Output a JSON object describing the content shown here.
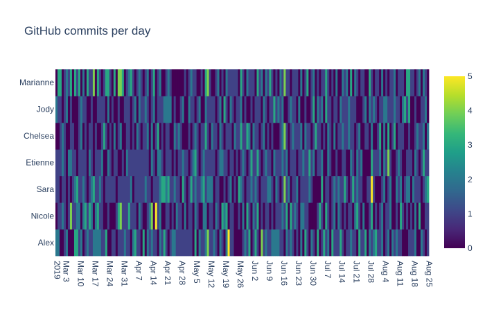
{
  "chart_data": {
    "type": "heatmap",
    "title": "GitHub commits per day",
    "xlabel": "",
    "ylabel": "",
    "start_date": "2019-03-01",
    "num_days": 180,
    "y_categories": [
      "Alex",
      "Nicole",
      "Sara",
      "Etienne",
      "Chelsea",
      "Jody",
      "Marianne"
    ],
    "x_tick_labels": [
      "Mar 3\n2019",
      "Mar 10",
      "Mar 17",
      "Mar 24",
      "Mar 31",
      "Apr 7",
      "Apr 14",
      "Apr 21",
      "Apr 28",
      "May 5",
      "May 12",
      "May 19",
      "May 26",
      "Jun 2",
      "Jun 9",
      "Jun 16",
      "Jun 23",
      "Jun 30",
      "Jul 7",
      "Jul 14",
      "Jul 21",
      "Jul 28",
      "Aug 4",
      "Aug 11",
      "Aug 18",
      "Aug 25"
    ],
    "x_tick_day_index": [
      2,
      9,
      16,
      23,
      30,
      37,
      44,
      51,
      58,
      65,
      72,
      79,
      86,
      93,
      100,
      107,
      114,
      121,
      128,
      135,
      142,
      149,
      156,
      163,
      170,
      177
    ],
    "colorscale": "Viridis",
    "zmin": 0,
    "zmax": 5,
    "colorbar_ticks": [
      0,
      1,
      2,
      3,
      4,
      5
    ],
    "z": {
      "Alex": [
        2,
        2,
        0,
        0,
        1,
        2,
        0,
        0,
        0,
        3,
        3,
        1,
        2,
        0,
        1,
        2,
        1,
        1,
        2,
        2,
        2,
        2,
        1,
        1,
        3,
        0,
        0,
        1,
        1,
        0,
        1,
        1,
        1,
        2,
        1,
        1,
        0,
        2,
        3,
        1,
        1,
        0,
        3,
        0,
        2,
        1,
        2,
        1,
        1,
        0,
        2,
        1,
        3,
        1,
        0,
        1,
        2,
        2,
        1,
        1,
        1,
        1,
        1,
        1,
        1,
        1,
        0,
        3,
        0,
        2,
        1,
        1,
        2,
        4,
        1,
        1,
        2,
        1,
        0,
        2,
        1,
        0,
        2,
        5,
        1,
        1,
        0,
        0,
        0,
        0,
        1,
        2,
        1,
        3,
        0,
        1,
        3,
        1,
        0,
        4,
        1,
        2,
        1,
        1,
        2,
        2,
        2,
        2,
        1,
        1,
        0,
        2,
        1,
        2,
        1,
        0,
        1,
        0,
        2,
        0,
        3,
        1,
        0,
        2,
        1,
        0,
        3,
        0,
        1,
        3,
        1,
        2,
        0,
        3,
        1,
        1,
        1,
        3,
        1,
        0,
        1,
        1,
        2,
        1,
        1,
        0,
        3,
        1,
        1,
        3,
        0,
        2,
        1,
        2,
        3,
        1,
        1,
        2,
        0,
        1,
        2,
        0,
        2,
        1,
        2,
        1,
        1,
        0,
        0,
        0,
        1,
        1,
        1,
        2,
        0,
        0,
        2,
        1,
        0,
        1
      ],
      "Nicole": [
        0,
        1,
        1,
        2,
        1,
        0,
        1,
        4,
        1,
        1,
        2,
        2,
        0,
        2,
        3,
        1,
        3,
        2,
        0,
        2,
        3,
        1,
        1,
        0,
        0,
        1,
        0,
        0,
        0,
        1,
        3,
        4,
        1,
        1,
        1,
        3,
        1,
        1,
        1,
        0,
        2,
        1,
        0,
        0,
        1,
        2,
        4,
        0,
        5,
        1,
        2,
        0,
        0,
        1,
        1,
        0,
        1,
        0,
        2,
        1,
        1,
        0,
        2,
        0,
        1,
        1,
        0,
        2,
        1,
        0,
        0,
        2,
        2,
        0,
        1,
        1,
        0,
        2,
        1,
        0,
        3,
        2,
        3,
        0,
        1,
        1,
        0,
        0,
        1,
        0,
        2,
        0,
        3,
        1,
        0,
        2,
        1,
        3,
        0,
        1,
        0,
        1,
        1,
        0,
        1,
        0,
        1,
        1,
        1,
        2,
        1,
        3,
        0,
        3,
        1,
        2,
        1,
        0,
        2,
        2,
        1,
        1,
        0,
        0,
        0,
        0,
        1,
        3,
        1,
        0,
        3,
        1,
        0,
        1,
        2,
        0,
        2,
        1,
        0,
        1,
        0,
        1,
        1,
        0,
        2,
        3,
        1,
        0,
        2,
        0,
        0,
        1,
        3,
        0,
        1,
        0,
        1,
        2,
        0,
        1,
        1,
        2,
        0,
        0,
        1,
        0,
        3,
        1,
        0,
        1,
        0,
        1,
        0,
        2,
        0,
        3,
        0,
        0,
        1,
        1
      ],
      "Sara": [
        1,
        1,
        0,
        1,
        1,
        0,
        1,
        0,
        1,
        2,
        3,
        1,
        1,
        2,
        1,
        0,
        1,
        2,
        3,
        1,
        1,
        2,
        1,
        0,
        1,
        1,
        1,
        1,
        1,
        0,
        1,
        1,
        1,
        1,
        1,
        1,
        2,
        0,
        1,
        1,
        1,
        1,
        1,
        2,
        1,
        1,
        0,
        1,
        1,
        1,
        2,
        3,
        3,
        2,
        3,
        1,
        1,
        2,
        1,
        1,
        0,
        3,
        1,
        0,
        1,
        3,
        1,
        2,
        1,
        1,
        2,
        3,
        1,
        2,
        2,
        2,
        0,
        1,
        1,
        0,
        0,
        1,
        0,
        1,
        2,
        0,
        1,
        0,
        3,
        2,
        1,
        0,
        1,
        1,
        2,
        1,
        2,
        1,
        0,
        1,
        1,
        1,
        2,
        2,
        1,
        0,
        2,
        1,
        0,
        1,
        4,
        1,
        2,
        0,
        1,
        1,
        2,
        0,
        1,
        1,
        1,
        1,
        2,
        1,
        0,
        0,
        0,
        0,
        3,
        0,
        1,
        1,
        0,
        1,
        2,
        1,
        2,
        1,
        1,
        3,
        1,
        0,
        1,
        3,
        1,
        2,
        1,
        1,
        0,
        0,
        1,
        1,
        5,
        1,
        0,
        0,
        0,
        1,
        2,
        0,
        1,
        2,
        0,
        0,
        2,
        1,
        2,
        0,
        1,
        2,
        2,
        0,
        2,
        1,
        1,
        1,
        0,
        1,
        2,
        3
      ],
      "Etienne": [
        1,
        1,
        1,
        2,
        1,
        0,
        2,
        2,
        1,
        1,
        0,
        1,
        1,
        1,
        1,
        0,
        2,
        1,
        0,
        1,
        1,
        1,
        2,
        0,
        0,
        2,
        1,
        0,
        1,
        1,
        0,
        0,
        1,
        0,
        2,
        1,
        1,
        1,
        1,
        1,
        1,
        1,
        1,
        1,
        1,
        0,
        2,
        1,
        0,
        2,
        2,
        1,
        0,
        1,
        1,
        1,
        0,
        1,
        0,
        1,
        1,
        2,
        1,
        1,
        0,
        1,
        2,
        3,
        1,
        0,
        1,
        2,
        1,
        1,
        1,
        1,
        1,
        0,
        1,
        2,
        2,
        1,
        1,
        0,
        1,
        1,
        0,
        1,
        0,
        1,
        2,
        1,
        0,
        1,
        3,
        1,
        1,
        3,
        1,
        0,
        1,
        2,
        1,
        1,
        0,
        2,
        1,
        1,
        1,
        2,
        1,
        2,
        0,
        1,
        1,
        1,
        0,
        1,
        1,
        2,
        1,
        1,
        3,
        1,
        2,
        0,
        1,
        1,
        2,
        0,
        0,
        2,
        1,
        0,
        0,
        1,
        0,
        0,
        1,
        1,
        0,
        0,
        2,
        1,
        0,
        2,
        1,
        2,
        0,
        0,
        0,
        0,
        3,
        1,
        1,
        1,
        2,
        0,
        2,
        1,
        4,
        1,
        0,
        0,
        1,
        2,
        1,
        0,
        0,
        1,
        1,
        1,
        0,
        2,
        1,
        0,
        1,
        3,
        1,
        1
      ],
      "Chelsea": [
        0,
        0,
        1,
        2,
        1,
        0,
        0,
        1,
        1,
        0,
        0,
        1,
        2,
        0,
        1,
        0,
        1,
        1,
        0,
        1,
        0,
        0,
        1,
        3,
        1,
        0,
        1,
        0,
        2,
        0,
        1,
        2,
        0,
        0,
        1,
        1,
        0,
        1,
        0,
        2,
        1,
        0,
        1,
        1,
        2,
        0,
        2,
        0,
        1,
        3,
        0,
        1,
        0,
        1,
        1,
        0,
        0,
        2,
        1,
        2,
        1,
        0,
        0,
        0,
        1,
        0,
        1,
        2,
        1,
        0,
        1,
        1,
        3,
        1,
        0,
        2,
        1,
        1,
        0,
        2,
        1,
        0,
        1,
        1,
        1,
        0,
        2,
        1,
        1,
        3,
        1,
        1,
        3,
        2,
        0,
        2,
        1,
        1,
        0,
        1,
        2,
        0,
        1,
        0,
        1,
        0,
        0,
        0,
        1,
        2,
        4,
        1,
        0,
        1,
        2,
        1,
        1,
        1,
        2,
        0,
        2,
        1,
        1,
        0,
        1,
        3,
        1,
        1,
        0,
        1,
        0,
        2,
        1,
        0,
        2,
        0,
        1,
        1,
        2,
        1,
        1,
        2,
        1,
        1,
        0,
        1,
        2,
        0,
        0,
        1,
        1,
        0,
        2,
        0,
        0,
        1,
        3,
        0,
        2,
        0,
        3,
        0,
        1,
        3,
        0,
        1,
        1,
        1,
        0,
        0,
        1,
        0,
        0,
        1,
        2,
        1,
        1,
        2,
        0,
        2
      ],
      "Jody": [
        2,
        1,
        1,
        0,
        1,
        2,
        0,
        1,
        0,
        0,
        0,
        1,
        2,
        1,
        1,
        0,
        0,
        1,
        0,
        0,
        1,
        1,
        1,
        1,
        0,
        2,
        0,
        1,
        0,
        0,
        1,
        0,
        0,
        1,
        1,
        1,
        0,
        1,
        2,
        0,
        2,
        1,
        1,
        2,
        1,
        0,
        1,
        2,
        0,
        1,
        1,
        1,
        2,
        2,
        2,
        2,
        0,
        1,
        0,
        0,
        1,
        2,
        0,
        0,
        2,
        1,
        1,
        0,
        1,
        2,
        0,
        0,
        2,
        1,
        1,
        1,
        1,
        0,
        1,
        2,
        0,
        3,
        1,
        0,
        2,
        1,
        0,
        1,
        1,
        2,
        0,
        1,
        0,
        0,
        1,
        0,
        1,
        1,
        1,
        0,
        2,
        1,
        0,
        1,
        1,
        3,
        1,
        2,
        1,
        2,
        0,
        0,
        1,
        2,
        1,
        1,
        0,
        2,
        0,
        0,
        1,
        0,
        0,
        1,
        3,
        0,
        2,
        1,
        2,
        0,
        3,
        1,
        1,
        0,
        1,
        1,
        0,
        2,
        1,
        1,
        1,
        2,
        1,
        1,
        1,
        0,
        0,
        0,
        1,
        2,
        0,
        2,
        1,
        2,
        1,
        0,
        1,
        1,
        2,
        2,
        1,
        1,
        1,
        2,
        1,
        1,
        0,
        2,
        3,
        1,
        3,
        0,
        0,
        1,
        0,
        0,
        1,
        1,
        2,
        0
      ],
      "Marianne": [
        0,
        3,
        3,
        0,
        1,
        2,
        1,
        3,
        0,
        3,
        1,
        3,
        0,
        2,
        0,
        3,
        1,
        1,
        4,
        0,
        3,
        1,
        0,
        1,
        3,
        3,
        1,
        0,
        3,
        0,
        4,
        4,
        3,
        0,
        1,
        2,
        3,
        1,
        0,
        1,
        2,
        1,
        0,
        1,
        2,
        0,
        1,
        3,
        0,
        1,
        2,
        0,
        0,
        1,
        2,
        1,
        0,
        0,
        0,
        0,
        0,
        0,
        1,
        0,
        1,
        2,
        1,
        1,
        0,
        0,
        1,
        0,
        3,
        4,
        1,
        0,
        0,
        1,
        2,
        0,
        1,
        0,
        2,
        1,
        1,
        1,
        1,
        1,
        0,
        3,
        1,
        0,
        2,
        1,
        1,
        1,
        0,
        3,
        1,
        2,
        0,
        2,
        1,
        3,
        1,
        0,
        1,
        0,
        2,
        1,
        4,
        1,
        1,
        0,
        1,
        1,
        1,
        0,
        2,
        0,
        1,
        3,
        0,
        1,
        2,
        0,
        1,
        0,
        1,
        1,
        3,
        1,
        0,
        1,
        0,
        2,
        0,
        0,
        2,
        1,
        2,
        0,
        3,
        0,
        2,
        1,
        0,
        1,
        1,
        0,
        0,
        3,
        1,
        0,
        1,
        1,
        0,
        2,
        0,
        1,
        0,
        1,
        1,
        2,
        0,
        1,
        1,
        1,
        0,
        3,
        3,
        1,
        1,
        0,
        1,
        2,
        0,
        2,
        1,
        0
      ]
    }
  }
}
